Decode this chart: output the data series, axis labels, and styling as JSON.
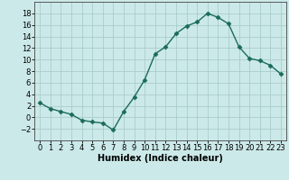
{
  "x": [
    0,
    1,
    2,
    3,
    4,
    5,
    6,
    7,
    8,
    9,
    10,
    11,
    12,
    13,
    14,
    15,
    16,
    17,
    18,
    19,
    20,
    21,
    22,
    23
  ],
  "y": [
    2.5,
    1.5,
    1.0,
    0.5,
    -0.5,
    -0.8,
    -1.0,
    -2.2,
    1.0,
    3.5,
    6.5,
    11.0,
    12.2,
    14.5,
    15.8,
    16.5,
    18.0,
    17.3,
    16.2,
    12.2,
    10.2,
    9.8,
    9.0,
    7.5
  ],
  "line_color": "#1a6b5a",
  "marker": "D",
  "marker_size": 2.5,
  "bg_color": "#cce9e9",
  "grid_color": "#aacccc",
  "xlabel": "Humidex (Indice chaleur)",
  "xlim": [
    -0.5,
    23.5
  ],
  "ylim": [
    -4,
    20
  ],
  "yticks": [
    -2,
    0,
    2,
    4,
    6,
    8,
    10,
    12,
    14,
    16,
    18
  ],
  "xticks": [
    0,
    1,
    2,
    3,
    4,
    5,
    6,
    7,
    8,
    9,
    10,
    11,
    12,
    13,
    14,
    15,
    16,
    17,
    18,
    19,
    20,
    21,
    22,
    23
  ],
  "xlabel_fontsize": 7,
  "tick_fontsize": 6
}
